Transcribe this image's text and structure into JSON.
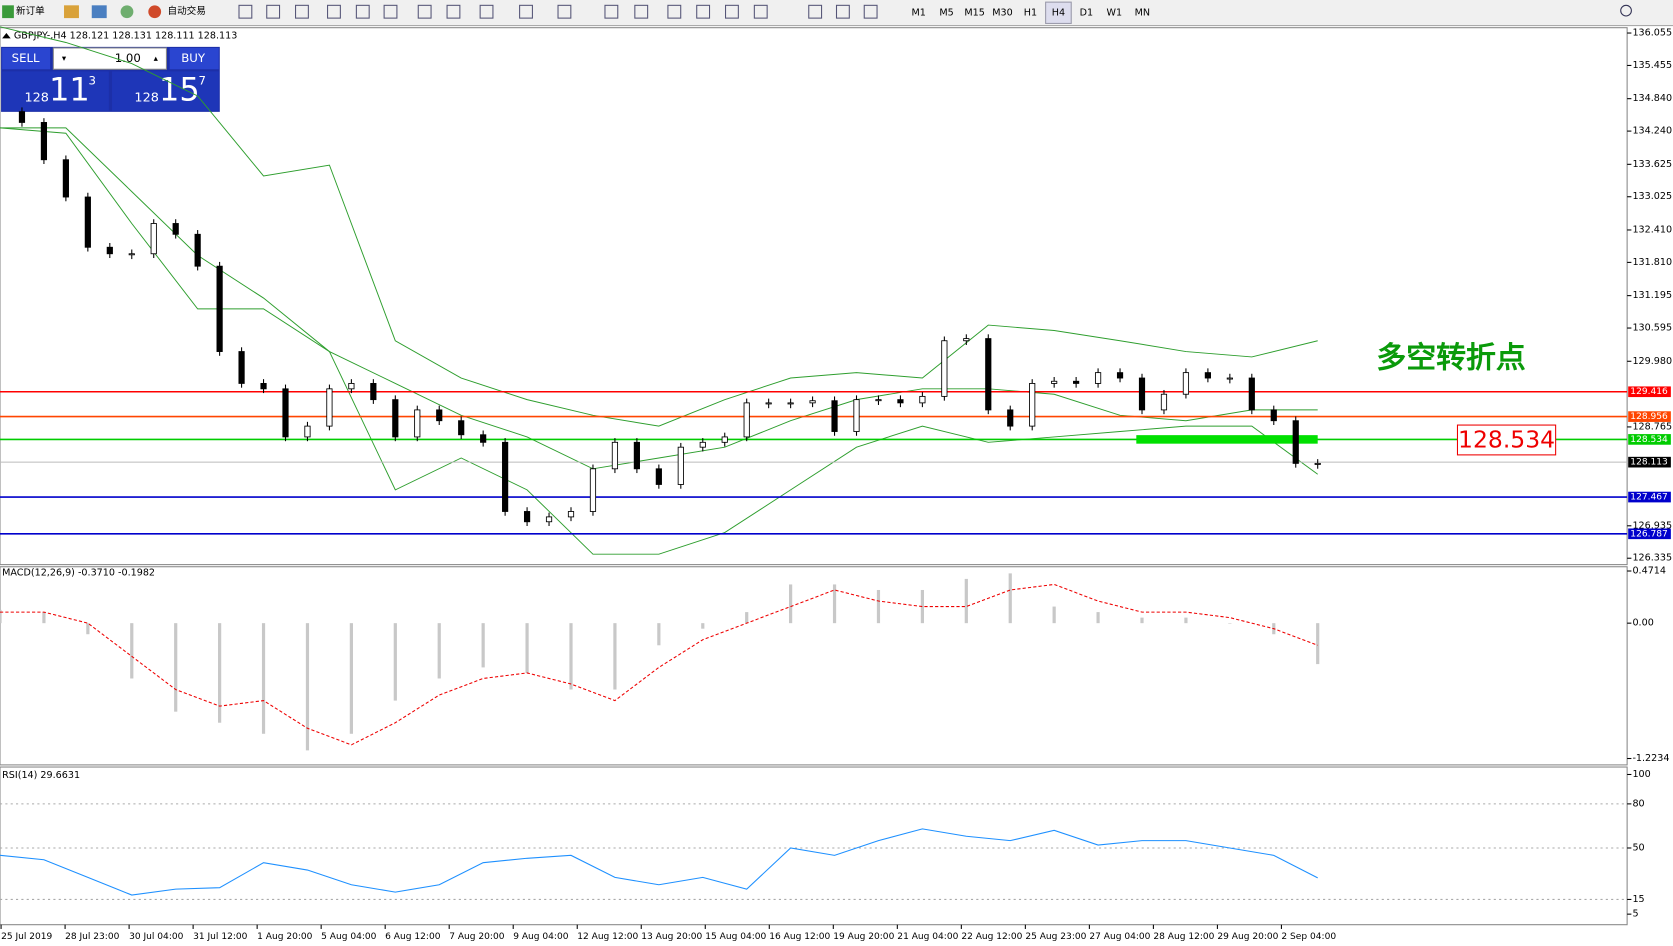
{
  "toolbar": {
    "new_order": "新订单",
    "auto_trading": "自动交易",
    "timeframes": [
      "M1",
      "M5",
      "M15",
      "M30",
      "H1",
      "H4",
      "D1",
      "W1",
      "MN"
    ],
    "active_timeframe": "H4"
  },
  "chart": {
    "header": "GBPJPY-,H4  128.121 128.131 128.111 128.113",
    "trade_panel": {
      "sell": "SELL",
      "buy": "BUY",
      "lots": "1.00",
      "sell_big": "128",
      "sell_main": "11",
      "sell_pip": "3",
      "buy_big": "128",
      "buy_main": "15",
      "buy_pip": "7"
    },
    "ylim": [
      126.335,
      136.055
    ],
    "yticks": [
      136.055,
      135.455,
      {
        "value": 134.84,
        "label": "134.840"
      },
      {
        "value": 134.24,
        "label": "134.240"
      },
      133.625,
      133.025,
      {
        "value": 132.41,
        "label": "132.410"
      },
      {
        "value": 131.81,
        "label": "131.810"
      },
      131.195,
      130.595,
      {
        "value": 129.98,
        "label": "129.980"
      },
      128.765,
      126.935,
      126.335
    ],
    "closes": [
      134.6,
      134.4,
      133.71,
      133.02,
      132.09,
      131.97,
      131.97,
      132.53,
      132.33,
      131.74,
      130.16,
      129.57,
      129.47,
      128.58,
      128.78,
      129.47,
      129.57,
      129.27,
      128.58,
      129.08,
      128.88,
      128.62,
      128.48,
      127.2,
      127.01,
      127.1,
      127.2,
      127.99,
      128.48,
      127.99,
      127.7,
      128.39,
      128.48,
      128.58,
      129.21,
      129.21,
      129.21,
      129.25,
      128.68,
      129.27,
      129.27,
      129.21,
      129.33,
      130.36,
      130.4,
      129.08,
      128.78,
      129.57,
      129.61,
      129.57,
      129.77,
      129.67,
      129.08,
      129.37,
      129.77,
      129.67,
      129.67,
      129.08,
      128.88,
      128.09,
      128.09
    ],
    "bands": {
      "color": "#2e9e2e",
      "upper": [
        136.17,
        135.88,
        135.49,
        134.89,
        133.41,
        133.61,
        130.36,
        129.67,
        129.27,
        128.98,
        128.78,
        129.27,
        129.67,
        129.77,
        129.67,
        130.65,
        130.55,
        130.36,
        130.16,
        130.06,
        130.36
      ],
      "middle": [
        134.3,
        134.3,
        133.12,
        131.94,
        131.15,
        130.16,
        129.57,
        128.98,
        128.58,
        127.99,
        128.19,
        128.39,
        128.88,
        129.27,
        129.47,
        129.47,
        129.37,
        128.98,
        128.88,
        129.08,
        129.08
      ],
      "lower": [
        134.3,
        134.2,
        132.53,
        130.95,
        130.95,
        130.16,
        127.6,
        128.19,
        127.6,
        126.41,
        126.41,
        126.81,
        127.6,
        128.39,
        128.78,
        128.48,
        128.58,
        128.68,
        128.78,
        128.78,
        127.89
      ]
    },
    "levels": [
      {
        "value": 129.416,
        "color": "#ff0000"
      },
      {
        "value": 128.956,
        "color": "#ff4500"
      },
      {
        "value": 128.534,
        "color": "#00cc00"
      },
      {
        "value": 127.467,
        "color": "#0000cc"
      },
      {
        "value": 126.787,
        "color": "#0000cc"
      }
    ],
    "bid_line": 128.113,
    "annotation": "多空转折点",
    "annotation_price": 128.534
  },
  "macd": {
    "label": "MACD(12,26,9) -0.3710 -0.1982",
    "ylim": [
      -1.2234,
      0.4714
    ],
    "yticks": [
      0.4714,
      {
        "value": 0,
        "label": "0.00"
      },
      -1.2234
    ],
    "histogram": [
      0.12,
      0.1,
      -0.1,
      -0.5,
      -0.8,
      -0.9,
      -1.0,
      -1.15,
      -1.0,
      -0.7,
      -0.5,
      -0.4,
      -0.45,
      -0.6,
      -0.6,
      -0.2,
      -0.05,
      0.1,
      0.35,
      0.35,
      0.3,
      0.3,
      0.4,
      0.45,
      0.15,
      0.1,
      0.05,
      0.05,
      0.0,
      -0.1,
      -0.37
    ],
    "signal": [
      0.1,
      0.1,
      0.0,
      -0.3,
      -0.6,
      -0.75,
      -0.7,
      -0.95,
      -1.1,
      -0.9,
      -0.65,
      -0.5,
      -0.45,
      -0.55,
      -0.7,
      -0.4,
      -0.15,
      0.0,
      0.15,
      0.3,
      0.2,
      0.15,
      0.15,
      0.3,
      0.35,
      0.2,
      0.1,
      0.1,
      0.05,
      -0.05,
      -0.2
    ]
  },
  "rsi": {
    "label": "RSI(14) 29.6631",
    "ylim": [
      0,
      100
    ],
    "yticks": [
      100,
      80,
      50,
      15,
      5
    ],
    "levels": [
      80,
      50,
      15
    ],
    "values": [
      45,
      42,
      30,
      18,
      22,
      23,
      40,
      35,
      25,
      20,
      25,
      40,
      43,
      45,
      30,
      25,
      30,
      22,
      50,
      45,
      55,
      63,
      58,
      55,
      62,
      52,
      55,
      55,
      50,
      45,
      29.6631
    ]
  },
  "time_labels": [
    "25 Jul 2019",
    "28 Jul 23:00",
    "30 Jul 04:00",
    "31 Jul 12:00",
    "1 Aug 20:00",
    "5 Aug 04:00",
    "6 Aug 12:00",
    "7 Aug 20:00",
    "9 Aug 04:00",
    "12 Aug 12:00",
    "13 Aug 20:00",
    "15 Aug 04:00",
    "16 Aug 12:00",
    "19 Aug 20:00",
    "21 Aug 04:00",
    "22 Aug 12:00",
    "25 Aug 23:00",
    "27 Aug 04:00",
    "28 Aug 12:00",
    "29 Aug 20:00",
    "2 Sep 04:00"
  ]
}
